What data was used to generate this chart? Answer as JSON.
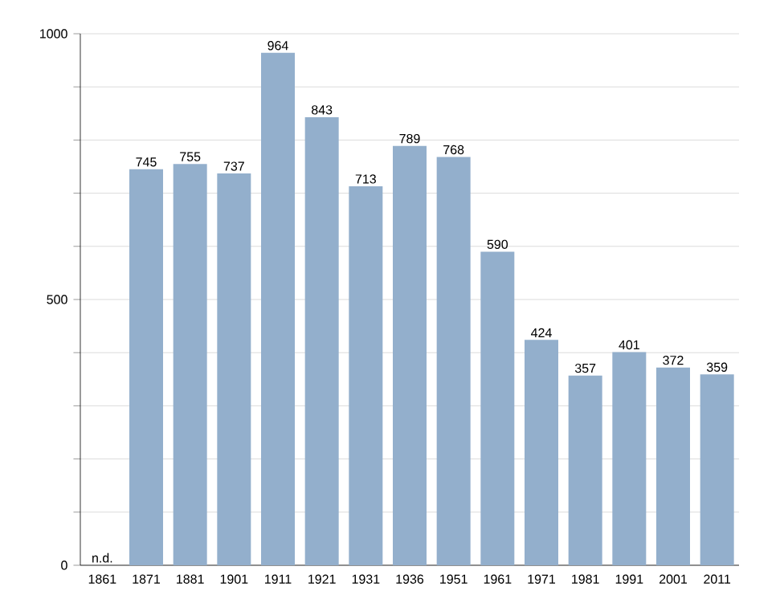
{
  "chart_data": {
    "type": "bar",
    "categories": [
      "1861",
      "1871",
      "1881",
      "1901",
      "1911",
      "1921",
      "1931",
      "1936",
      "1951",
      "1961",
      "1971",
      "1981",
      "1991",
      "2001",
      "2011"
    ],
    "values": [
      null,
      745,
      755,
      737,
      964,
      843,
      713,
      789,
      768,
      590,
      424,
      357,
      401,
      372,
      359
    ],
    "value_labels": [
      "n.d.",
      "745",
      "755",
      "737",
      "964",
      "843",
      "713",
      "789",
      "768",
      "590",
      "424",
      "357",
      "401",
      "372",
      "359"
    ],
    "color": "#93afcc",
    "ylim": [
      0,
      1000
    ],
    "yticks": [
      0,
      {
        "value": 100,
        "label": null
      },
      {
        "value": 200,
        "label": null
      },
      {
        "value": 300,
        "label": null
      },
      {
        "value": 400,
        "label": null
      },
      500,
      {
        "value": 600,
        "label": null
      },
      {
        "value": 700,
        "label": null
      },
      {
        "value": 800,
        "label": null
      },
      {
        "value": 900,
        "label": null
      },
      1000
    ],
    "grid": true
  }
}
